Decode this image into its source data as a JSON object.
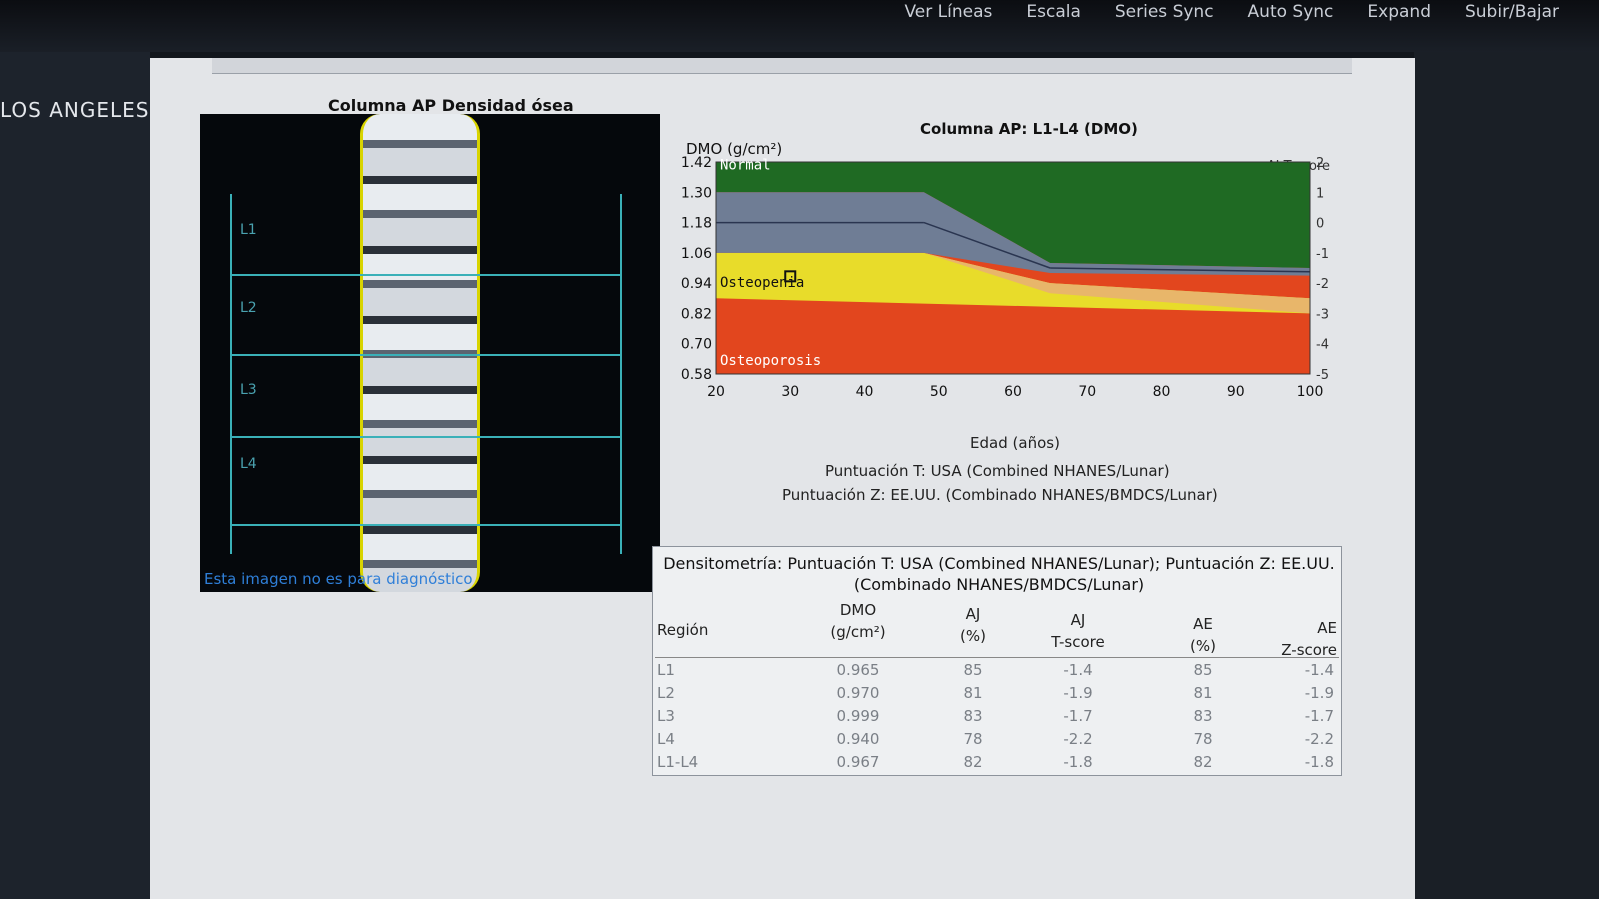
{
  "topmenu": [
    "Ver Líneas",
    "Escala",
    "Series Sync",
    "Auto Sync",
    "Expand",
    "Subir/Bajar"
  ],
  "location": "LOS ANGELES",
  "image_panel": {
    "title": "Columna AP Densidad ósea",
    "vertebra_labels": [
      "L1",
      "L2",
      "L3",
      "L4"
    ],
    "note": "Esta imagen no es para diagnóstico"
  },
  "chart_data": {
    "type": "area",
    "title": "Columna AP: L1-L4 (DMO)",
    "ylabel": "DMO (g/cm²)",
    "y2label": "AJ T-score",
    "xlabel": "Edad (años)",
    "x_ticks": [
      20,
      30,
      40,
      50,
      60,
      70,
      80,
      90,
      100
    ],
    "y_ticks": [
      1.42,
      1.3,
      1.18,
      1.06,
      0.94,
      0.82,
      0.7,
      0.58
    ],
    "y2_ticks": [
      2,
      1,
      0,
      -1,
      -2,
      -3,
      -4,
      -5
    ],
    "xlim": [
      20,
      100
    ],
    "ylim": [
      0.58,
      1.42
    ],
    "zones": [
      {
        "name": "Normal",
        "color": "#1f6a23"
      },
      {
        "name": "Osteopenia",
        "color": "#e8dc2a"
      },
      {
        "name": "Osteoporosis",
        "color": "#e2461e"
      }
    ],
    "point": {
      "x": 30,
      "y": 0.967
    }
  },
  "references": {
    "t_score": "Puntuación T: USA (Combined NHANES/Lunar)",
    "z_score": "Puntuación Z: EE.UU. (Combinado NHANES/BMDCS/Lunar)"
  },
  "table": {
    "title_line1": "Densitometría: Puntuación T: USA (Combined NHANES/Lunar); Puntuación Z: EE.UU.",
    "title_line2": "(Combinado NHANES/BMDCS/Lunar)",
    "headers": {
      "region": "Región",
      "dmo": "DMO",
      "dmo_unit": "(g/cm²)",
      "aj_pct": "AJ",
      "aj_pct_unit": "(%)",
      "aj_t": "AJ",
      "aj_t_unit": "T-score",
      "ae_pct": "AE",
      "ae_pct_unit": "(%)",
      "ae_z": "AE",
      "ae_z_unit": "Z-score"
    },
    "rows": [
      {
        "region": "L1",
        "dmo": "0.965",
        "aj_pct": "85",
        "aj_t": "-1.4",
        "ae_pct": "85",
        "ae_z": "-1.4"
      },
      {
        "region": "L2",
        "dmo": "0.970",
        "aj_pct": "81",
        "aj_t": "-1.9",
        "ae_pct": "81",
        "ae_z": "-1.9"
      },
      {
        "region": "L3",
        "dmo": "0.999",
        "aj_pct": "83",
        "aj_t": "-1.7",
        "ae_pct": "83",
        "ae_z": "-1.7"
      },
      {
        "region": "L4",
        "dmo": "0.940",
        "aj_pct": "78",
        "aj_t": "-2.2",
        "ae_pct": "78",
        "ae_z": "-2.2"
      },
      {
        "region": "L1-L4",
        "dmo": "0.967",
        "aj_pct": "82",
        "aj_t": "-1.8",
        "ae_pct": "82",
        "ae_z": "-1.8"
      }
    ]
  }
}
